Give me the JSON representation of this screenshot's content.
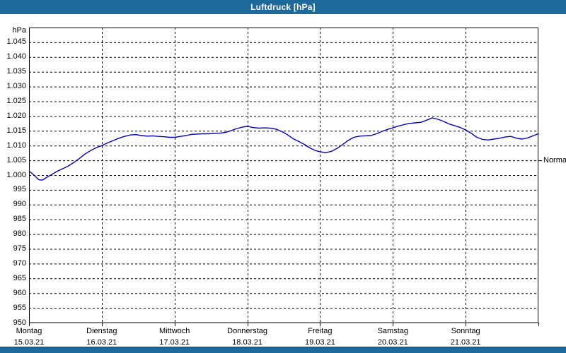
{
  "window": {
    "title": "Luftdruck [hPa]"
  },
  "colors": {
    "frame_blue": "#1e699b",
    "frame_dark_edge": "#10466f",
    "line_blue": "#0000c0",
    "grid_black": "#000000",
    "plot_background": "#ffffff"
  },
  "chart_data": {
    "type": "line",
    "title": "Luftdruck [hPa]",
    "unit_label": "hPa",
    "grid": "dashed",
    "legend_position": "none",
    "reference": {
      "label": "Normal",
      "value": 1005
    },
    "y_axis": {
      "ylim": [
        950,
        1050
      ],
      "tick_step": 5,
      "tick_values": [
        1045,
        1040,
        1035,
        1030,
        1025,
        1020,
        1015,
        1010,
        1005,
        1000,
        995,
        990,
        985,
        980,
        975,
        970,
        965,
        960,
        955,
        950
      ],
      "tick_labels": [
        "1.045",
        "1.040",
        "1.035",
        "1.030",
        "1.025",
        "1.020",
        "1.015",
        "1.010",
        "1.005",
        "1.000",
        "995",
        "990",
        "985",
        "980",
        "975",
        "970",
        "965",
        "960",
        "955",
        "950"
      ]
    },
    "x_axis": {
      "hours_range": [
        0,
        168
      ],
      "days": [
        {
          "name": "Montag",
          "date": "15.03.21"
        },
        {
          "name": "Dienstag",
          "date": "16.03.21"
        },
        {
          "name": "Mittwoch",
          "date": "17.03.21"
        },
        {
          "name": "Donnerstag",
          "date": "18.03.21"
        },
        {
          "name": "Freitag",
          "date": "19.03.21"
        },
        {
          "name": "Samstag",
          "date": "20.03.21"
        },
        {
          "name": "Sonntag",
          "date": "21.03.21"
        }
      ]
    },
    "series": [
      {
        "name": "Luftdruck",
        "color": "#0000c0",
        "x_hours": [
          0,
          1.6,
          3.3,
          4.4,
          6.1,
          7.5,
          9.1,
          11,
          12.8,
          14.7,
          16.6,
          18.4,
          20.3,
          22.2,
          24,
          25.9,
          27.8,
          29.6,
          31.5,
          33.4,
          35.2,
          37.1,
          39,
          40.8,
          42.7,
          44.6,
          46.4,
          48,
          49.9,
          51.8,
          53.7,
          55.5,
          57.4,
          59.3,
          61.1,
          63,
          64.9,
          66.7,
          68.6,
          70.5,
          72,
          74,
          75.8,
          77.7,
          79.6,
          81.4,
          83.3,
          85.2,
          87,
          88.9,
          90.8,
          92.6,
          94.5,
          96,
          97.8,
          99.6,
          101.5,
          103.4,
          105.2,
          107.1,
          109,
          110.8,
          112.7,
          114.6,
          116.4,
          118.3,
          120,
          121.8,
          123.7,
          125.5,
          127.4,
          129.3,
          131.1,
          133,
          134.9,
          136.7,
          138.6,
          140.5,
          142.3,
          144,
          145.8,
          147.7,
          149.6,
          151.4,
          153.3,
          155.2,
          157,
          158.9,
          160.8,
          162.6,
          164.5,
          166.4,
          168
        ],
        "values": [
          1001.4,
          1000.0,
          998.4,
          998.3,
          999.4,
          1000.2,
          1001.2,
          1002.1,
          1003.0,
          1004.2,
          1005.6,
          1007.1,
          1008.3,
          1009.3,
          1010.0,
          1010.9,
          1011.7,
          1012.5,
          1013.1,
          1013.6,
          1013.7,
          1013.4,
          1013.2,
          1013.3,
          1013.1,
          1013.0,
          1012.8,
          1012.8,
          1013.1,
          1013.4,
          1013.8,
          1013.9,
          1014.0,
          1014.0,
          1014.1,
          1014.2,
          1014.5,
          1015.1,
          1015.8,
          1016.3,
          1016.5,
          1016.1,
          1015.9,
          1016.0,
          1015.9,
          1015.6,
          1014.8,
          1013.7,
          1012.4,
          1011.4,
          1010.4,
          1009.2,
          1008.3,
          1007.9,
          1007.6,
          1008.0,
          1009.0,
          1010.3,
          1011.7,
          1012.8,
          1013.2,
          1013.3,
          1013.4,
          1014.0,
          1014.8,
          1015.5,
          1016.0,
          1016.6,
          1017.1,
          1017.5,
          1017.7,
          1017.9,
          1018.6,
          1019.4,
          1018.9,
          1018.2,
          1017.3,
          1016.7,
          1016.1,
          1015.3,
          1014.2,
          1012.8,
          1012.1,
          1011.9,
          1012.2,
          1012.5,
          1012.9,
          1013.1,
          1012.5,
          1012.2,
          1012.6,
          1013.4,
          1014.0
        ]
      }
    ]
  }
}
